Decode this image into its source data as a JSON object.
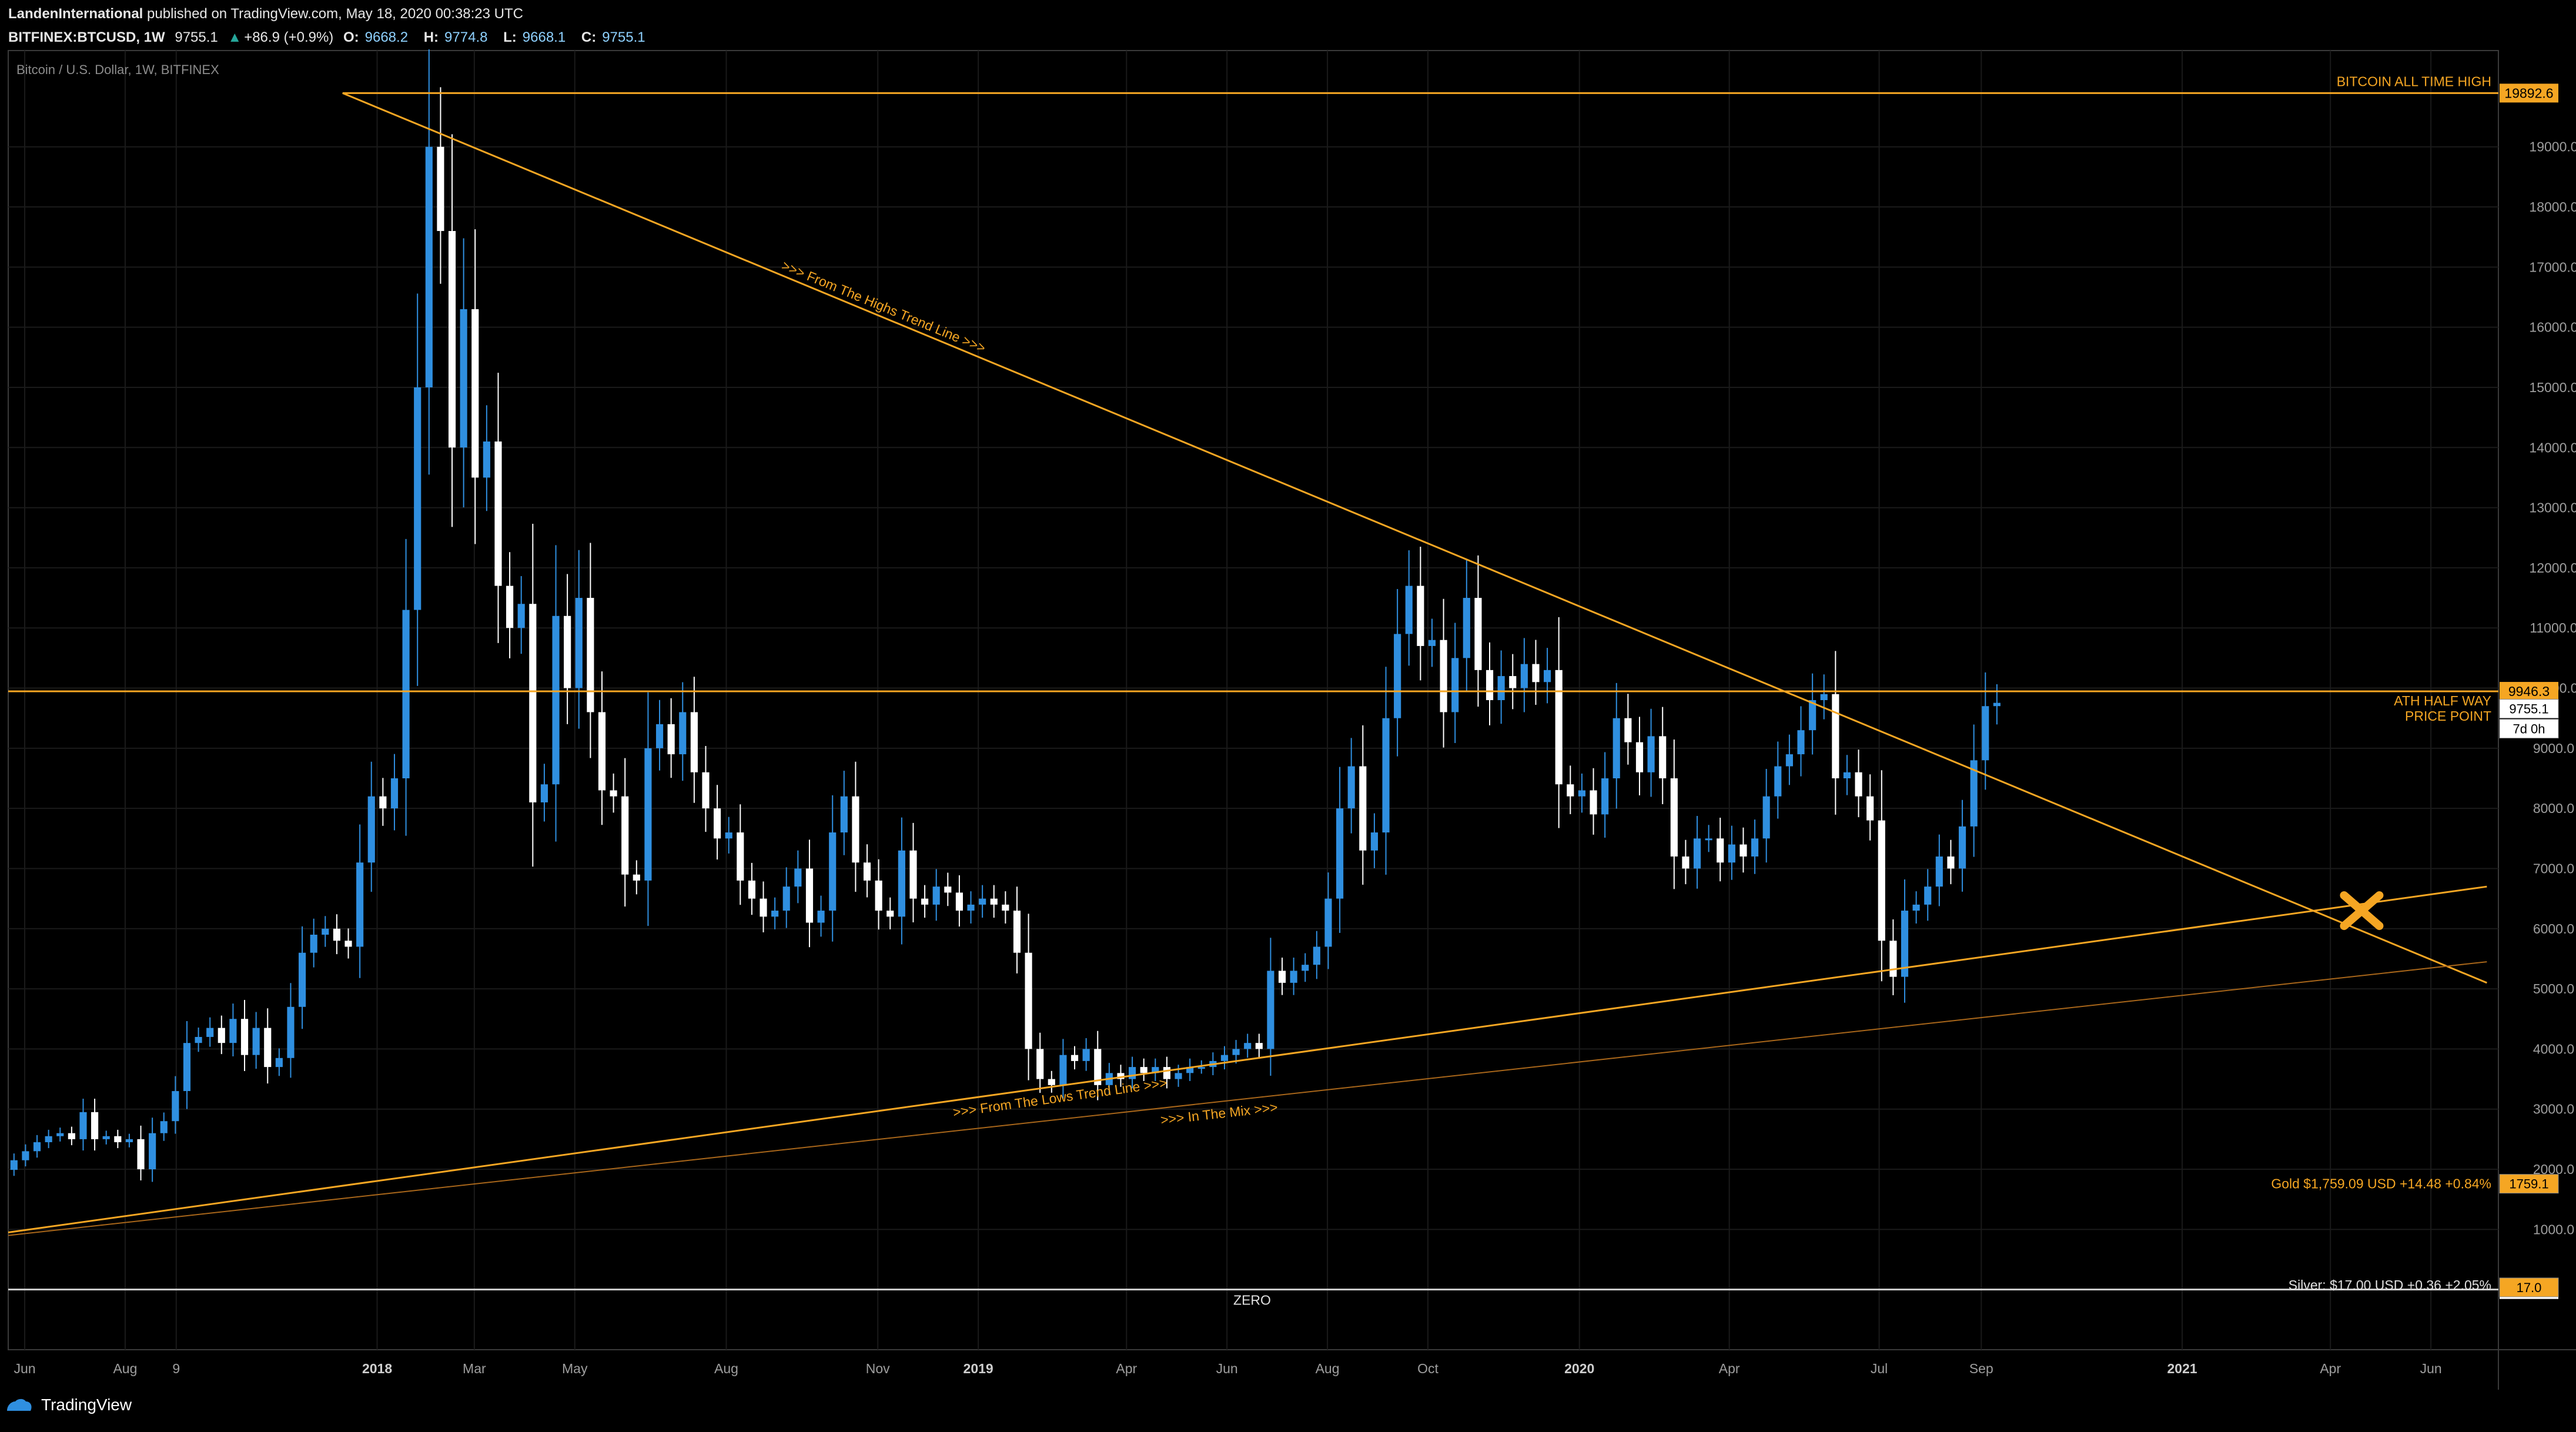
{
  "header": {
    "author": "LandenInternational",
    "published": "published on TradingView.com, May 18, 2020 00:38:23 UTC",
    "symbol": "BITFINEX:BTCUSD, 1W",
    "last": "9755.1",
    "change_arrow": "▲",
    "change": "+86.9 (+0.9%)",
    "o_label": "O:",
    "o": "9668.2",
    "h_label": "H:",
    "h": "9774.8",
    "l_label": "L:",
    "l": "9668.1",
    "c_label": "C:",
    "c": "9755.1"
  },
  "footer": {
    "brand": "TradingView"
  },
  "colors": {
    "background": "#000000",
    "grid": "#1a1a1a",
    "up_candle": "#2f8fe0",
    "down_candle": "#ffffff",
    "orange": "#f5a623",
    "axis_text": "#9e9e9e"
  },
  "chart_data": {
    "type": "candlestick",
    "title": "Bitcoin / U.S. Dollar, 1W, BITFINEX",
    "ylim": [
      -1000,
      20600
    ],
    "y_ticks": [
      1000,
      2000,
      3000,
      4000,
      5000,
      6000,
      7000,
      8000,
      9000,
      10000,
      11000,
      12000,
      13000,
      14000,
      15000,
      16000,
      17000,
      18000,
      19000
    ],
    "y_tick_labels": [
      "1000.0",
      "2000.0",
      "3000.0",
      "4000.0",
      "5000.0",
      "6000.0",
      "7000.0",
      "8000.0",
      "9000.0",
      "10000.0",
      "11000.0",
      "12000.0",
      "13000.0",
      "14000.0",
      "15000.0",
      "16000.0",
      "17000.0",
      "18000.0",
      "19000.0"
    ],
    "x_range": [
      "2017-05-22",
      "2021-07-12"
    ],
    "x_labels": [
      {
        "date": "2017-06-01",
        "label": "Jun",
        "bold": false
      },
      {
        "date": "2017-08-01",
        "label": "Aug",
        "bold": false
      },
      {
        "date": "2017-09-01",
        "label": "9",
        "bold": false
      },
      {
        "date": "2018-01-01",
        "label": "2018",
        "bold": true
      },
      {
        "date": "2018-03-01",
        "label": "Mar",
        "bold": false
      },
      {
        "date": "2018-05-01",
        "label": "May",
        "bold": false
      },
      {
        "date": "2018-08-01",
        "label": "Aug",
        "bold": false
      },
      {
        "date": "2018-11-01",
        "label": "Nov",
        "bold": false
      },
      {
        "date": "2019-01-01",
        "label": "2019",
        "bold": true
      },
      {
        "date": "2019-04-01",
        "label": "Apr",
        "bold": false
      },
      {
        "date": "2019-06-01",
        "label": "Jun",
        "bold": false
      },
      {
        "date": "2019-08-01",
        "label": "Aug",
        "bold": false
      },
      {
        "date": "2019-10-01",
        "label": "Oct",
        "bold": false
      },
      {
        "date": "2020-01-01",
        "label": "2020",
        "bold": true
      },
      {
        "date": "2020-04-01",
        "label": "Apr",
        "bold": false
      },
      {
        "date": "2020-07-01",
        "label": "Jul",
        "bold": false
      },
      {
        "date": "2020-09-01",
        "label": "Sep",
        "bold": false
      },
      {
        "date": "2021-01-01",
        "label": "2021",
        "bold": true
      },
      {
        "date": "2021-04-01",
        "label": "Apr",
        "bold": false
      },
      {
        "date": "2021-06-01",
        "label": "Jun",
        "bold": false
      }
    ],
    "candles_weekly_close": {
      "start": "2017-05-22",
      "open": 1990,
      "closes": [
        2150,
        2300,
        2450,
        2550,
        2600,
        2500,
        2950,
        2500,
        2550,
        2450,
        2500,
        2000,
        2600,
        2800,
        3300,
        4100,
        4200,
        4350,
        4100,
        4500,
        3900,
        4350,
        3700,
        3850,
        4700,
        5600,
        5900,
        6000,
        5800,
        5700,
        7100,
        8200,
        8000,
        8500,
        11300,
        15000,
        19000,
        17600,
        14000,
        16300,
        13500,
        14100,
        11700,
        11000,
        11400,
        8100,
        8400,
        11200,
        10000,
        11500,
        9600,
        8300,
        8200,
        6900,
        6800,
        9000,
        9400,
        8900,
        9600,
        8600,
        8000,
        7500,
        7600,
        6800,
        6500,
        6200,
        6300,
        6700,
        7000,
        6100,
        6300,
        7600,
        8200,
        7100,
        6800,
        6300,
        6200,
        7300,
        6500,
        6400,
        6700,
        6600,
        6300,
        6400,
        6500,
        6400,
        6300,
        5600,
        4000,
        3500,
        3400,
        3900,
        3800,
        4000,
        3400,
        3600,
        3500,
        3700,
        3600,
        3700,
        3500,
        3600,
        3700,
        3700,
        3800,
        3900,
        4000,
        4100,
        4000,
        5300,
        5100,
        5300,
        5400,
        5700,
        6500,
        8000,
        8700,
        7300,
        7600,
        9500,
        10900,
        11700,
        10700,
        10800,
        9600,
        10500,
        11500,
        10300,
        9800,
        10200,
        10000,
        10400,
        10100,
        10300,
        8400,
        8200,
        8300,
        7900,
        8500,
        9500,
        9100,
        8600,
        9200,
        8500,
        7200,
        7000,
        7500,
        7500,
        7100,
        7400,
        7200,
        7500,
        8200,
        8700,
        8900,
        9300,
        9800,
        9900,
        8500,
        8600,
        8200,
        7800,
        5800,
        5200,
        6300,
        6400,
        6700,
        7200,
        7000,
        7700,
        8800,
        9700,
        9755
      ]
    },
    "levels": [
      {
        "value": 19892.6,
        "label": "BITCOIN ALL TIME HIGH",
        "tag": "19892.6"
      },
      {
        "value": 9946.3,
        "label": "ATH HALF WAY",
        "label2": "PRICE POINT",
        "tag": "9946.3"
      },
      {
        "value": 0,
        "label": "ZERO",
        "tag": "0.0"
      }
    ],
    "price_tags": {
      "last": "9755.1",
      "countdown": "7d 0h",
      "gold": "1759.1",
      "silver": "17.0"
    },
    "trend_lines": [
      {
        "label": "From The Highs Trend Line",
        "text": ">>> From The Highs Trend Line >>>",
        "from": [
          "2017-12-11",
          19892.6
        ],
        "to": [
          "2021-07-05",
          5100
        ]
      },
      {
        "label": "From The Lows Trend Line",
        "text": ">>> From The Lows Trend Line >>>",
        "from": [
          "2017-05-22",
          950
        ],
        "to": [
          "2021-07-05",
          6700
        ]
      },
      {
        "label": "In The Mix",
        "text": ">>> In The Mix >>>",
        "from": [
          "2017-05-22",
          900
        ],
        "to": [
          "2021-07-05",
          5450
        ]
      }
    ],
    "cross_marker": {
      "date": "2021-04-20",
      "value": 6300
    },
    "annotations": {
      "gold": "Gold  $1,759.09 USD +14.48 +0.84%",
      "silver": "Silver: $17.00 USD +0.36 +2.05%"
    }
  }
}
